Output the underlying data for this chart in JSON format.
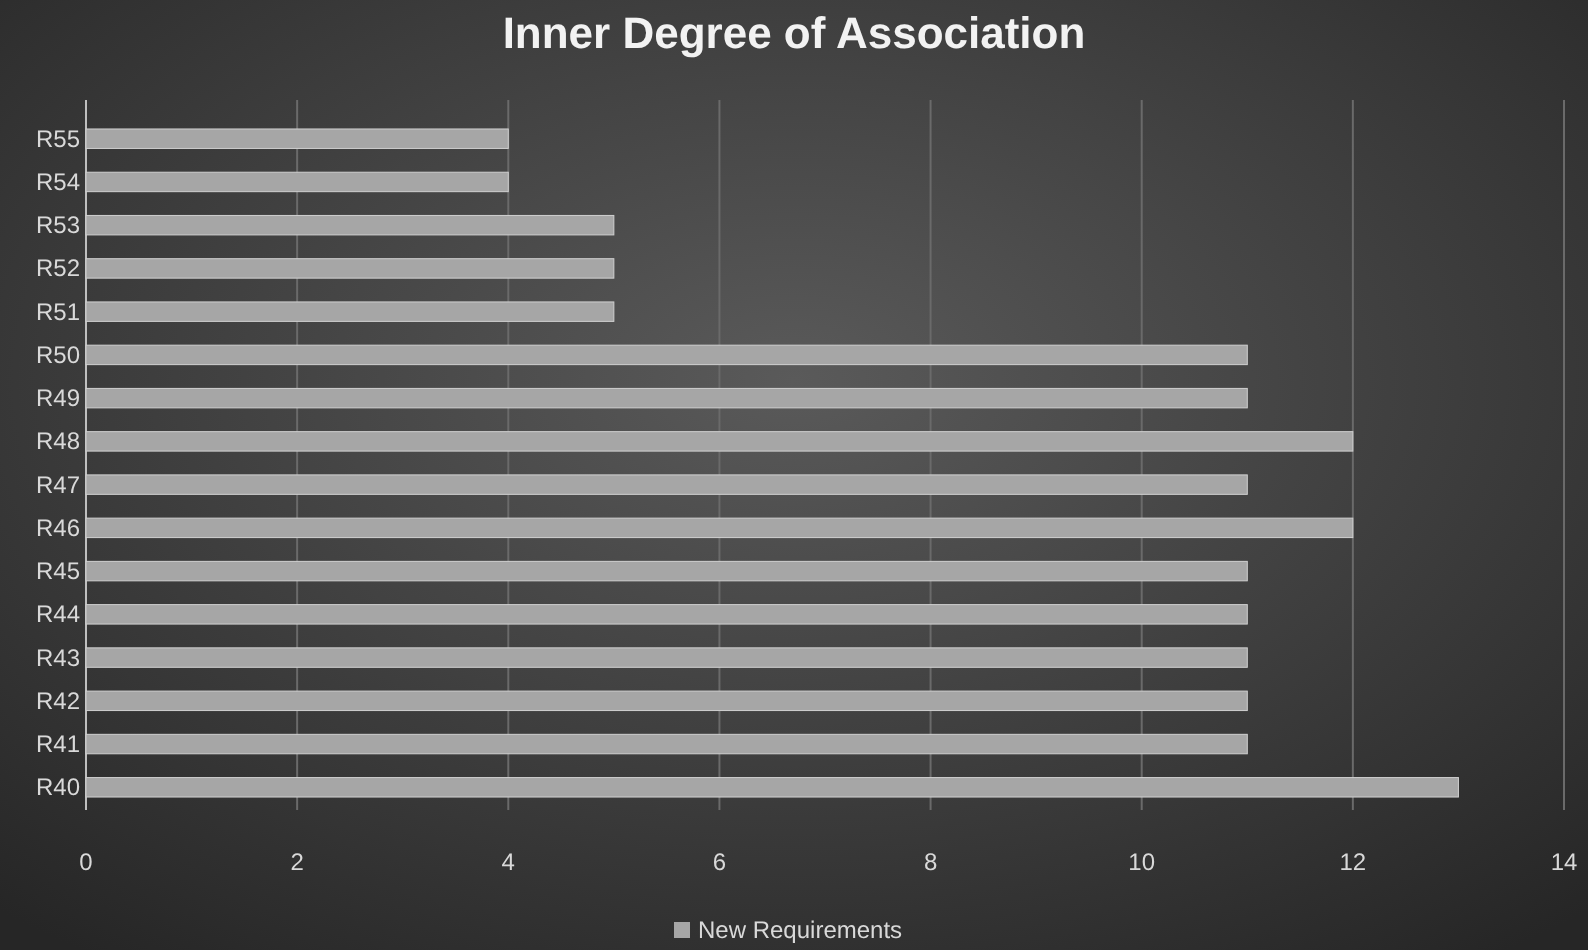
{
  "chart_data": {
    "type": "bar",
    "orientation": "horizontal",
    "title": "Inner Degree of Association",
    "categories": [
      "R55",
      "R54",
      "R53",
      "R52",
      "R51",
      "R50",
      "R49",
      "R48",
      "R47",
      "R46",
      "R45",
      "R44",
      "R43",
      "R42",
      "R41",
      "R40"
    ],
    "series": [
      {
        "name": "New Requirements",
        "color": "#a6a6a6",
        "values": [
          4,
          4,
          5,
          5,
          5,
          11,
          11,
          12,
          11,
          12,
          11,
          11,
          11,
          11,
          11,
          13
        ]
      }
    ],
    "xlim": [
      0,
      14
    ],
    "xticks": [
      0,
      2,
      4,
      6,
      8,
      10,
      12,
      14
    ],
    "grid": "x",
    "legend": "bottom"
  }
}
